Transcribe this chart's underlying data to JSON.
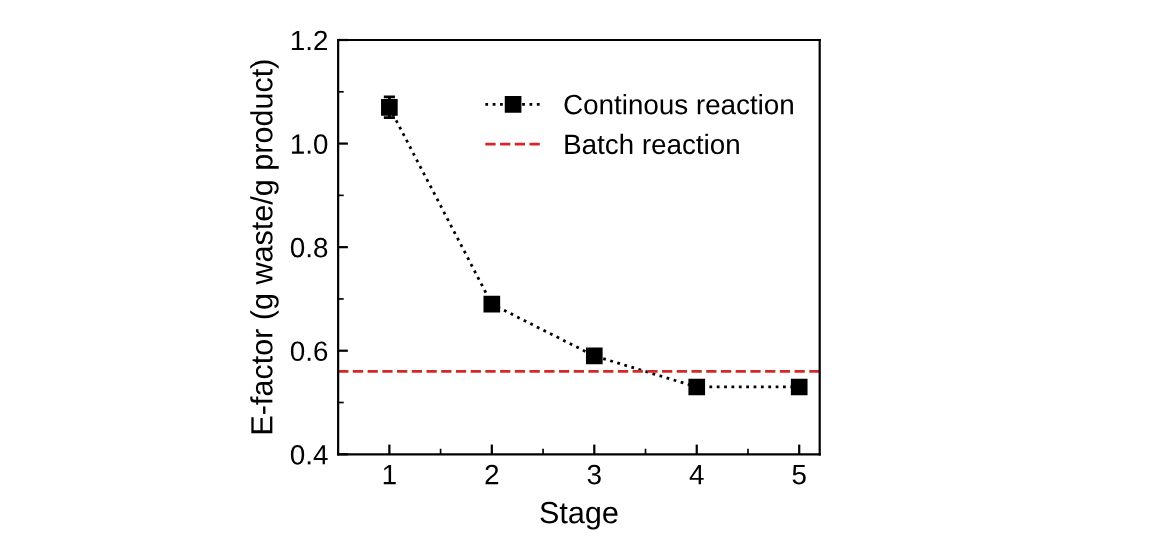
{
  "chart_data": {
    "type": "line",
    "xlabel": "Stage",
    "ylabel": "E-factor (g waste/g product)",
    "x": [
      1,
      2,
      3,
      4,
      5
    ],
    "series": [
      {
        "name": "Continous reaction",
        "color": "#000000",
        "values": [
          1.07,
          0.69,
          0.59,
          0.53,
          0.53
        ],
        "errors": [
          0.02,
          null,
          null,
          null,
          null
        ]
      }
    ],
    "ref_lines": [
      {
        "axis": "y",
        "value": 0.56,
        "label": "Batch reaction",
        "color": "#d62728",
        "line_style": "dashed"
      }
    ],
    "xlim": [
      0.5,
      5.2
    ],
    "xticks": [
      1,
      2,
      3,
      4,
      5
    ],
    "ylim": [
      0.4,
      1.2
    ],
    "yticks": [
      {
        "value": 0.4,
        "label": "0.4"
      },
      {
        "value": 0.6,
        "label": "0.6"
      },
      {
        "value": 0.8,
        "label": "0.8"
      },
      {
        "value": 1.0,
        "label": "1.0"
      },
      {
        "value": 1.2,
        "label": "1.2"
      }
    ],
    "marker": "square",
    "line_style": "dotted",
    "grid": false,
    "legend": "top right"
  }
}
